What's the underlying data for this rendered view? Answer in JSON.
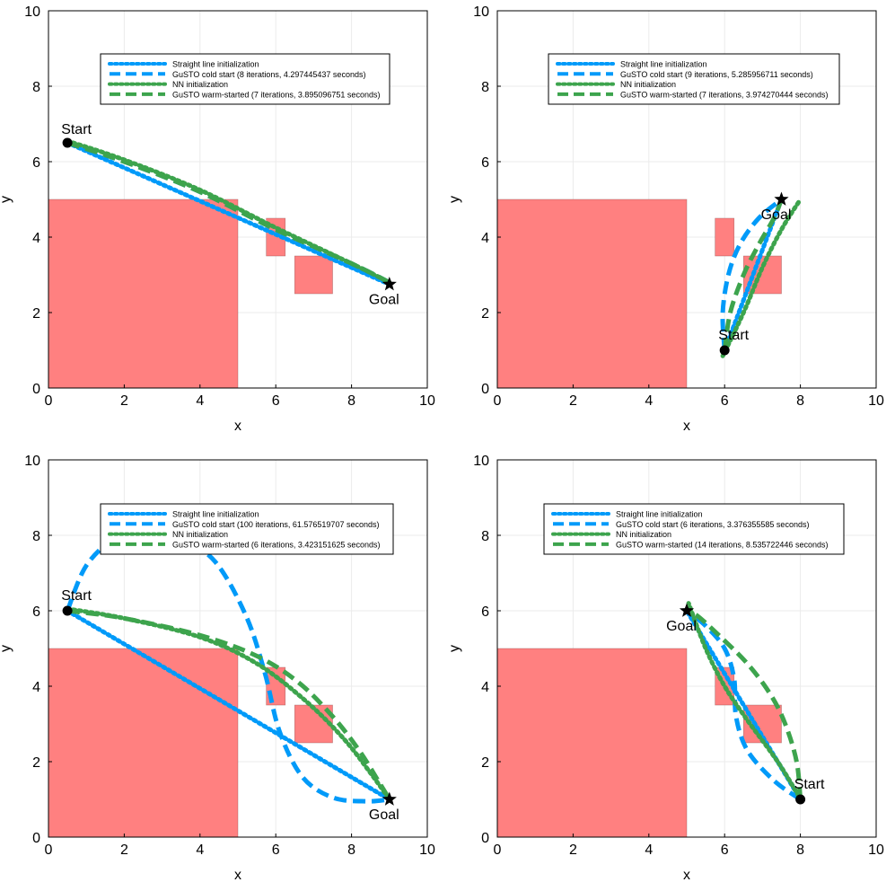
{
  "colors": {
    "obstacle": "#ff8080",
    "blue": "#009af9",
    "green": "#3da44d",
    "grid": "#ebebeb"
  },
  "chart_data": [
    {
      "type": "line",
      "xlabel": "x",
      "ylabel": "y",
      "xlim": [
        0,
        10
      ],
      "ylim": [
        0,
        10
      ],
      "xticks": [
        "0",
        "2",
        "4",
        "6",
        "8",
        "10"
      ],
      "yticks": [
        "0",
        "2",
        "4",
        "6",
        "8",
        "10"
      ],
      "grid": true,
      "legend_placement": "top-center",
      "obstacles": [
        {
          "x0": 0,
          "y0": 0,
          "x1": 5,
          "y1": 5
        },
        {
          "x0": 5.75,
          "y0": 3.5,
          "x1": 6.25,
          "y1": 4.5
        },
        {
          "x0": 6.5,
          "y0": 2.5,
          "x1": 7.5,
          "y1": 3.5
        }
      ],
      "start": {
        "label": "Start",
        "x": 0.5,
        "y": 6.5
      },
      "goal": {
        "label": "Goal",
        "x": 9.0,
        "y": 2.75
      },
      "series": [
        {
          "name": "Straight line initialization",
          "style": "dotted",
          "color": "#009af9",
          "x": [
            0.5,
            9.0
          ],
          "y": [
            6.5,
            2.75
          ]
        },
        {
          "name": "GuSTO cold start (8 iterations, 4.297445437 seconds)",
          "style": "dashed",
          "color": "#009af9",
          "x": [
            0.5,
            2.0,
            4.0,
            6.0,
            8.0,
            9.0
          ],
          "y": [
            6.5,
            6.0,
            5.2,
            4.2,
            3.3,
            2.8
          ]
        },
        {
          "name": "NN initialization",
          "style": "dotted",
          "color": "#3da44d",
          "x": [
            0.5,
            2.0,
            4.0,
            6.0,
            8.0,
            9.0
          ],
          "y": [
            6.55,
            6.05,
            5.25,
            4.25,
            3.3,
            2.8
          ]
        },
        {
          "name": "GuSTO warm-started (7 iterations, 3.895096751 seconds)",
          "style": "dashed",
          "color": "#3da44d",
          "x": [
            0.5,
            2.0,
            4.0,
            6.0,
            8.0,
            9.0
          ],
          "y": [
            6.5,
            6.0,
            5.2,
            4.2,
            3.3,
            2.8
          ]
        }
      ]
    },
    {
      "type": "line",
      "xlabel": "x",
      "ylabel": "y",
      "xlim": [
        0,
        10
      ],
      "ylim": [
        0,
        10
      ],
      "xticks": [
        "0",
        "2",
        "4",
        "6",
        "8",
        "10"
      ],
      "yticks": [
        "0",
        "2",
        "4",
        "6",
        "8",
        "10"
      ],
      "grid": true,
      "legend_placement": "top-center",
      "obstacles": [
        {
          "x0": 0,
          "y0": 0,
          "x1": 5,
          "y1": 5
        },
        {
          "x0": 5.75,
          "y0": 3.5,
          "x1": 6.25,
          "y1": 4.5
        },
        {
          "x0": 6.5,
          "y0": 2.5,
          "x1": 7.5,
          "y1": 3.5
        }
      ],
      "start": {
        "label": "Start",
        "x": 6.0,
        "y": 1.0
      },
      "goal": {
        "label": "Goal",
        "x": 7.5,
        "y": 5.0
      },
      "series": [
        {
          "name": "Straight line initialization",
          "style": "dotted",
          "color": "#009af9",
          "x": [
            6.0,
            7.5
          ],
          "y": [
            1.0,
            5.0
          ]
        },
        {
          "name": "GuSTO cold start (9 iterations, 5.285956711 seconds)",
          "style": "dashed",
          "color": "#009af9",
          "x": [
            6.0,
            5.95,
            6.1,
            6.4,
            6.9,
            7.5
          ],
          "y": [
            1.0,
            2.0,
            3.0,
            3.8,
            4.5,
            5.0
          ]
        },
        {
          "name": "NN initialization",
          "style": "dotted",
          "color": "#3da44d",
          "x": [
            5.95,
            6.5,
            7.0,
            7.5,
            8.0
          ],
          "y": [
            0.85,
            2.0,
            3.2,
            4.2,
            5.0
          ]
        },
        {
          "name": "GuSTO warm-started (7 iterations, 3.974270444 seconds)",
          "style": "dashed",
          "color": "#3da44d",
          "x": [
            6.0,
            6.15,
            6.5,
            6.9,
            7.3,
            7.5
          ],
          "y": [
            1.0,
            2.0,
            3.0,
            3.8,
            4.5,
            5.0
          ]
        }
      ]
    },
    {
      "type": "line",
      "xlabel": "x",
      "ylabel": "y",
      "xlim": [
        0,
        10
      ],
      "ylim": [
        0,
        10
      ],
      "xticks": [
        "0",
        "2",
        "4",
        "6",
        "8",
        "10"
      ],
      "yticks": [
        "0",
        "2",
        "4",
        "6",
        "8",
        "10"
      ],
      "grid": true,
      "legend_placement": "top-center",
      "obstacles": [
        {
          "x0": 0,
          "y0": 0,
          "x1": 5,
          "y1": 5
        },
        {
          "x0": 5.75,
          "y0": 3.5,
          "x1": 6.25,
          "y1": 4.5
        },
        {
          "x0": 6.5,
          "y0": 2.5,
          "x1": 7.5,
          "y1": 3.5
        }
      ],
      "start": {
        "label": "Start",
        "x": 0.5,
        "y": 6.0
      },
      "goal": {
        "label": "Goal",
        "x": 9.0,
        "y": 1.0
      },
      "series": [
        {
          "name": "Straight line initialization",
          "style": "dotted",
          "color": "#009af9",
          "x": [
            0.5,
            9.0
          ],
          "y": [
            6.0,
            1.0
          ]
        },
        {
          "name": "GuSTO cold start (100 iterations, 61.576519707 seconds)",
          "style": "dashed",
          "color": "#009af9",
          "x": [
            0.5,
            1.0,
            1.8,
            2.6,
            3.5,
            4.4,
            5.2,
            5.7,
            6.1,
            6.7,
            7.5,
            8.4,
            9.0
          ],
          "y": [
            6.0,
            7.2,
            7.95,
            8.1,
            7.9,
            7.3,
            5.9,
            4.4,
            2.8,
            1.6,
            1.05,
            0.95,
            1.0
          ]
        },
        {
          "name": "NN initialization",
          "style": "dotted",
          "color": "#3da44d",
          "x": [
            0.5,
            2.0,
            4.0,
            5.5,
            6.8,
            7.8,
            8.5,
            9.0
          ],
          "y": [
            6.05,
            5.8,
            5.3,
            4.6,
            3.6,
            2.6,
            1.7,
            1.0
          ]
        },
        {
          "name": "GuSTO warm-started (6 iterations, 3.423151625 seconds)",
          "style": "dashed",
          "color": "#3da44d",
          "x": [
            0.5,
            2.0,
            4.0,
            5.5,
            6.6,
            7.5,
            8.2,
            8.7,
            9.0
          ],
          "y": [
            6.0,
            5.8,
            5.35,
            4.8,
            4.1,
            3.2,
            2.3,
            1.5,
            1.0
          ]
        }
      ]
    },
    {
      "type": "line",
      "xlabel": "x",
      "ylabel": "y",
      "xlim": [
        0,
        10
      ],
      "ylim": [
        0,
        10
      ],
      "xticks": [
        "0",
        "2",
        "4",
        "6",
        "8",
        "10"
      ],
      "yticks": [
        "0",
        "2",
        "4",
        "6",
        "8",
        "10"
      ],
      "grid": true,
      "legend_placement": "top-center",
      "obstacles": [
        {
          "x0": 0,
          "y0": 0,
          "x1": 5,
          "y1": 5
        },
        {
          "x0": 5.75,
          "y0": 3.5,
          "x1": 6.25,
          "y1": 4.5
        },
        {
          "x0": 6.5,
          "y0": 2.5,
          "x1": 7.5,
          "y1": 3.5
        }
      ],
      "start": {
        "label": "Start",
        "x": 8.0,
        "y": 1.0
      },
      "goal": {
        "label": "Goal",
        "x": 5.0,
        "y": 6.0
      },
      "series": [
        {
          "name": "Straight line initialization",
          "style": "dotted",
          "color": "#009af9",
          "x": [
            8.0,
            5.0
          ],
          "y": [
            1.0,
            6.0
          ]
        },
        {
          "name": "GuSTO cold start (6 iterations, 3.376355585 seconds)",
          "style": "dashed",
          "color": "#009af9",
          "x": [
            8.0,
            7.3,
            6.6,
            6.3,
            6.25,
            6.0,
            5.5,
            5.0
          ],
          "y": [
            1.0,
            1.5,
            2.3,
            3.2,
            4.2,
            5.0,
            5.6,
            6.0
          ]
        },
        {
          "name": "NN initialization",
          "style": "dotted",
          "color": "#3da44d",
          "x": [
            7.95,
            7.4,
            6.6,
            6.0,
            5.5,
            5.05
          ],
          "y": [
            1.1,
            2.0,
            3.1,
            4.0,
            5.0,
            6.2
          ]
        },
        {
          "name": "GuSTO warm-started (14 iterations, 8.535722446 seconds)",
          "style": "dashed",
          "color": "#3da44d",
          "x": [
            8.0,
            7.9,
            7.6,
            7.2,
            6.6,
            5.9,
            5.3,
            5.0
          ],
          "y": [
            1.0,
            2.0,
            3.0,
            3.8,
            4.6,
            5.3,
            5.85,
            6.0
          ]
        }
      ]
    }
  ]
}
